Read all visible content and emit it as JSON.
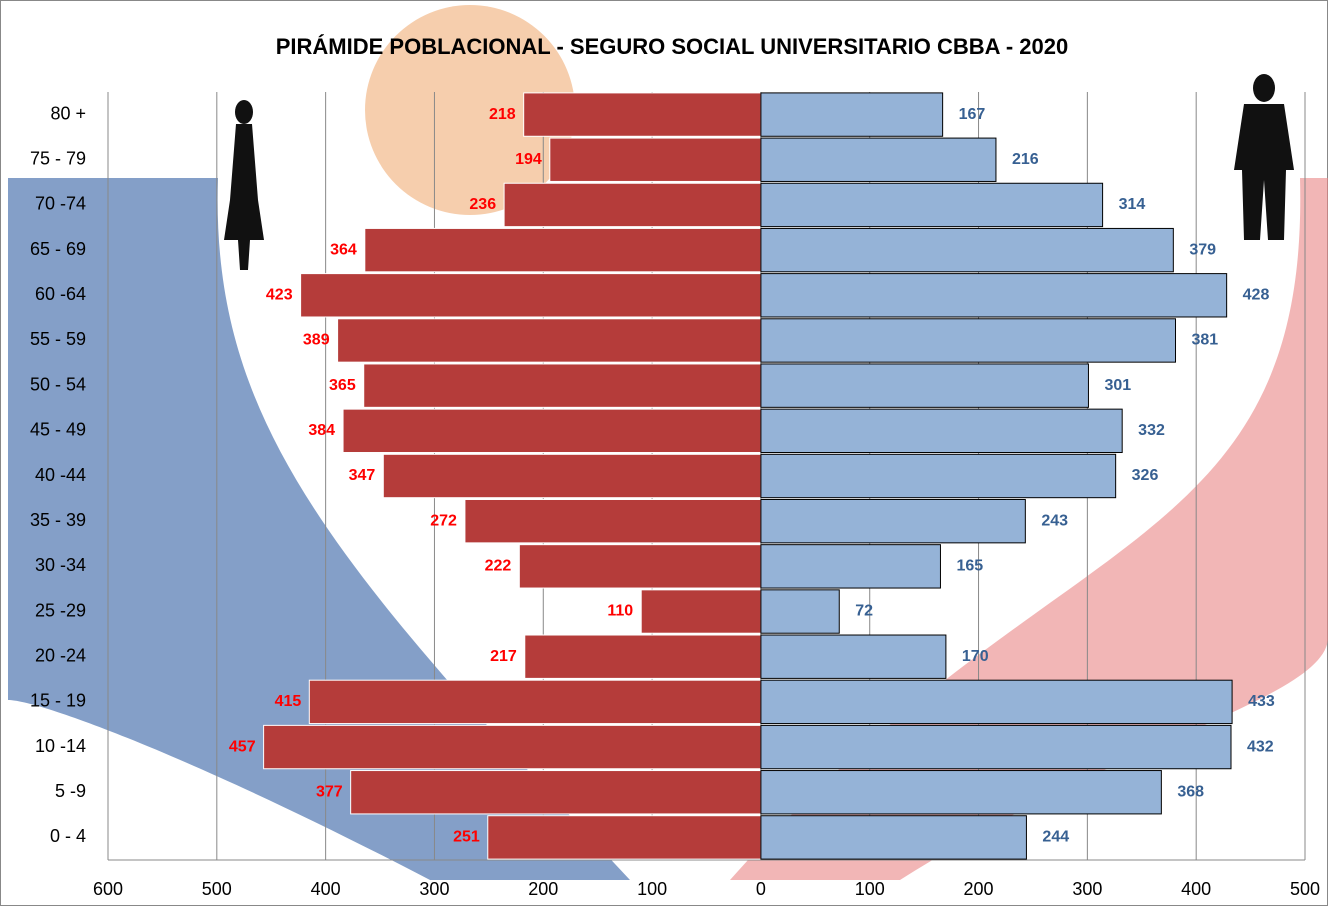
{
  "chart_data": {
    "type": "pyramid",
    "title": "PIRÁMIDE POBLACIONAL  - SEGURO SOCIAL UNIVERSITARIO CBBA - 2020",
    "categories": [
      "80 +",
      "75 - 79",
      "70 -74",
      "65 - 69",
      "60 -64",
      "55 - 59",
      "50 - 54",
      "45 - 49",
      "40 -44",
      "35 - 39",
      "30 -34",
      "25 -29",
      "20 -24",
      "15 - 19",
      "10 -14",
      "5 -9",
      "0 - 4"
    ],
    "series": [
      {
        "color": "#b53c3a",
        "label_color": "#ff0000",
        "side": "left",
        "values": [
          218,
          194,
          236,
          364,
          423,
          389,
          365,
          384,
          347,
          272,
          222,
          110,
          217,
          415,
          457,
          377,
          251
        ]
      },
      {
        "color": "#95b3d7",
        "label_color": "#376092",
        "side": "right",
        "values": [
          167,
          216,
          314,
          379,
          428,
          381,
          301,
          332,
          326,
          243,
          165,
          72,
          170,
          433,
          432,
          368,
          244
        ]
      }
    ],
    "xlim": [
      -600,
      500
    ],
    "xticks": [
      {
        "value": -600,
        "label": "600"
      },
      {
        "value": -500,
        "label": "500"
      },
      {
        "value": -400,
        "label": "400"
      },
      {
        "value": -300,
        "label": "300"
      },
      {
        "value": -200,
        "label": "200"
      },
      {
        "value": -100,
        "label": "100"
      },
      0,
      100,
      200,
      300,
      400,
      500
    ],
    "grid": true
  }
}
